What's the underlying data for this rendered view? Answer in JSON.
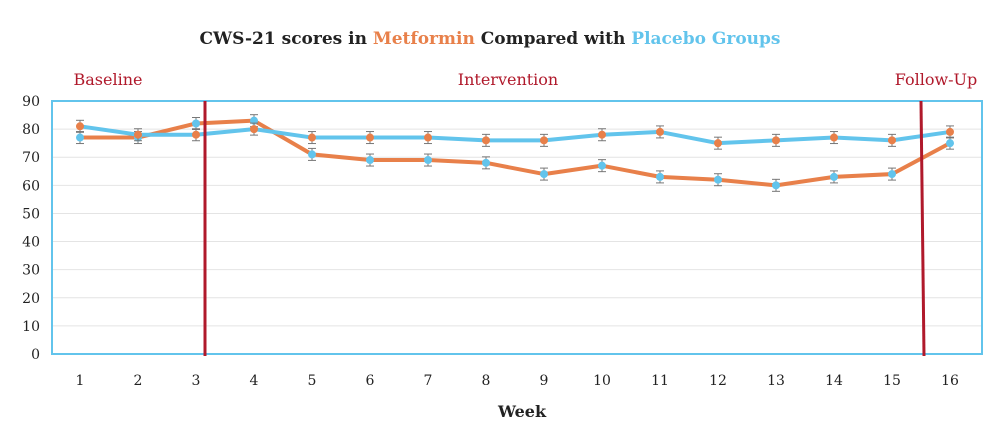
{
  "title": {
    "part1": "CWS-21 scores in ",
    "metformin_word": "Metformin",
    "part2": " Compared with ",
    "placebo_word": "Placebo Groups"
  },
  "colors": {
    "metformin": "#e8804a",
    "placebo": "#62c4ec",
    "phase": "#b0192b",
    "frame": "#62c4ec"
  },
  "chart_data": {
    "type": "line",
    "title": "CWS-21 scores in Metformin Compared with Placebo Groups",
    "xlabel": "Week",
    "ylabel": "",
    "x": [
      1,
      2,
      3,
      4,
      5,
      6,
      7,
      8,
      9,
      10,
      11,
      12,
      13,
      14,
      15,
      16
    ],
    "ylim": [
      0,
      90
    ],
    "yticks": [
      0,
      10,
      20,
      30,
      40,
      50,
      60,
      70,
      80,
      90
    ],
    "grid": true,
    "series": [
      {
        "name": "Metformin",
        "values": [
          77,
          77,
          82,
          83,
          71,
          69,
          69,
          68,
          64,
          67,
          63,
          62,
          60,
          63,
          64,
          75
        ]
      },
      {
        "name": "Placebo",
        "values": [
          81,
          78,
          78,
          80,
          77,
          77,
          77,
          76,
          76,
          78,
          79,
          75,
          76,
          77,
          76,
          79
        ]
      }
    ],
    "phases": [
      {
        "label": "Baseline",
        "boundary_after_week": null
      },
      {
        "label": "Intervention",
        "boundary_after_week": 3
      },
      {
        "label": "Follow-Up",
        "boundary_after_week": 15
      }
    ]
  }
}
